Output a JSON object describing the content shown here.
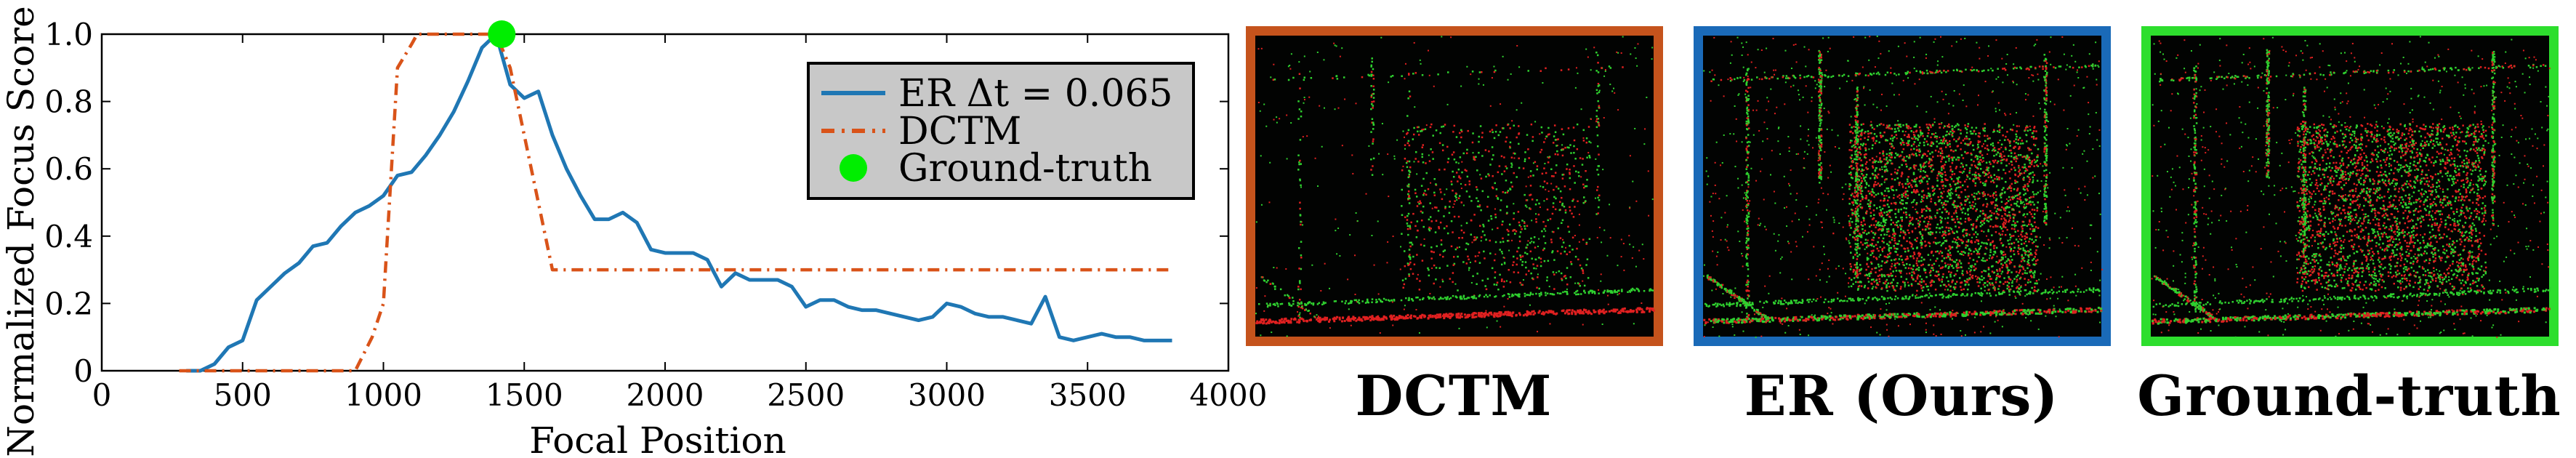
{
  "chart_data": {
    "type": "line",
    "xlabel": "Focal Position",
    "ylabel": "Normalized Focus Score",
    "xlim": [
      0,
      4000
    ],
    "ylim": [
      0,
      1.0
    ],
    "x_ticks": [
      "0",
      "500",
      "1000",
      "1500",
      "2000",
      "2500",
      "3000",
      "3500",
      "4000"
    ],
    "y_ticks": [
      "0",
      "0.2",
      "0.4",
      "0.6",
      "0.8",
      "1.0"
    ],
    "grid": false,
    "legend_position": "top-right",
    "series": [
      {
        "name": "ER Δt = 0.065",
        "color": "#1f77b4",
        "style": "solid",
        "x": [
          300,
          350,
          400,
          450,
          500,
          550,
          600,
          650,
          700,
          750,
          800,
          850,
          900,
          950,
          1000,
          1050,
          1100,
          1150,
          1200,
          1250,
          1300,
          1350,
          1400,
          1450,
          1500,
          1550,
          1600,
          1650,
          1700,
          1750,
          1800,
          1850,
          1900,
          1950,
          2000,
          2050,
          2100,
          2150,
          2200,
          2250,
          2300,
          2350,
          2400,
          2450,
          2500,
          2550,
          2600,
          2650,
          2700,
          2750,
          2800,
          2850,
          2900,
          2950,
          3000,
          3050,
          3100,
          3150,
          3200,
          3250,
          3300,
          3350,
          3400,
          3450,
          3500,
          3550,
          3600,
          3650,
          3700,
          3750,
          3800
        ],
        "values": [
          0.0,
          0.0,
          0.02,
          0.07,
          0.09,
          0.21,
          0.25,
          0.29,
          0.32,
          0.37,
          0.38,
          0.43,
          0.47,
          0.49,
          0.52,
          0.58,
          0.59,
          0.64,
          0.7,
          0.77,
          0.86,
          0.96,
          1.0,
          0.85,
          0.81,
          0.83,
          0.7,
          0.6,
          0.52,
          0.45,
          0.45,
          0.47,
          0.44,
          0.36,
          0.35,
          0.35,
          0.35,
          0.33,
          0.25,
          0.29,
          0.27,
          0.27,
          0.27,
          0.25,
          0.19,
          0.21,
          0.21,
          0.19,
          0.18,
          0.18,
          0.17,
          0.16,
          0.15,
          0.16,
          0.2,
          0.19,
          0.17,
          0.16,
          0.16,
          0.15,
          0.14,
          0.22,
          0.1,
          0.09,
          0.1,
          0.11,
          0.1,
          0.1,
          0.09,
          0.09,
          0.09
        ]
      },
      {
        "name": "DCTM",
        "color": "#d95319",
        "style": "dashdot",
        "x": [
          275,
          900,
          960,
          1000,
          1050,
          1100,
          1120,
          1400,
          1450,
          1600,
          3800
        ],
        "values": [
          0.0,
          0.0,
          0.1,
          0.2,
          0.9,
          0.97,
          1.0,
          1.0,
          0.9,
          0.3,
          0.3
        ]
      },
      {
        "name": "Ground-truth",
        "color": "#00ee00",
        "style": "marker",
        "x": [
          1420
        ],
        "values": [
          1.0
        ]
      }
    ]
  },
  "panels": [
    {
      "caption": "DCTM",
      "border_color": "#c5531c",
      "events": "sparse"
    },
    {
      "caption": "ER (Ours)",
      "border_color": "#1a6ab8",
      "events": "dense"
    },
    {
      "caption": "Ground-truth",
      "border_color": "#2dde2d",
      "events": "dense"
    }
  ]
}
